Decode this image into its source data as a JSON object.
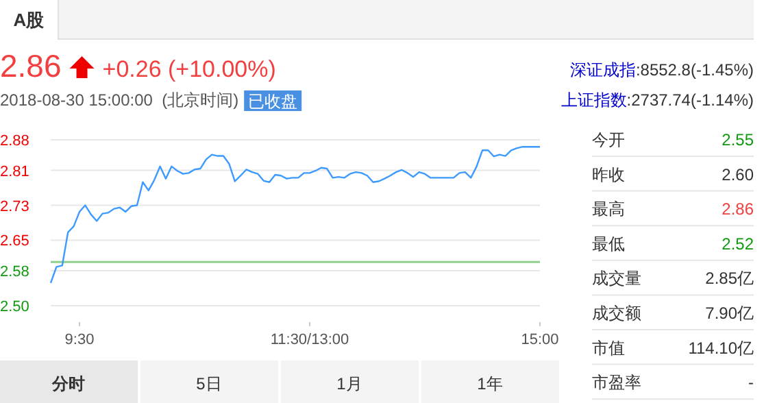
{
  "chart_data": [
    {
      "type": "other",
      "annotations": [
        "A股",
        "2.86",
        "+0.26 (+10.00%)",
        "2018-08-30 15:00:00  (北京时间)",
        "已收盘",
        "深证成指",
        ":8552.8(-1.45%)",
        "上证指数",
        ":2737.74(-1.14%)"
      ]
    },
    {
      "type": "line",
      "categories": [
        null,
        null,
        null,
        null,
        null,
        "9:30",
        null,
        null,
        null,
        null,
        null,
        null,
        null,
        null,
        null,
        null,
        null,
        null,
        null,
        null,
        null,
        null,
        null,
        null,
        null,
        null,
        null,
        null,
        null,
        null,
        null,
        null,
        null,
        null,
        null,
        null,
        null,
        null,
        null,
        null,
        null,
        null,
        null,
        null,
        null,
        "11:30/13:00",
        null,
        null,
        null,
        null,
        null,
        null,
        null,
        null,
        null,
        null,
        null,
        null,
        null,
        null,
        null,
        null,
        null,
        null,
        null,
        null,
        null,
        null,
        null,
        null,
        null,
        null,
        null,
        null,
        null,
        null,
        null,
        null,
        null,
        null,
        null,
        null,
        null,
        null,
        null,
        "15:00"
      ],
      "series": [
        {
          "color": "#3d9bff",
          "values": [
            2.552,
            2.589,
            2.592,
            2.668,
            2.682,
            2.715,
            2.73,
            2.709,
            2.694,
            2.711,
            2.713,
            2.722,
            2.725,
            2.715,
            2.728,
            2.73,
            2.783,
            2.764,
            2.788,
            2.819,
            2.791,
            2.819,
            2.809,
            2.802,
            2.804,
            2.812,
            2.814,
            2.835,
            2.846,
            2.843,
            2.843,
            2.825,
            2.785,
            2.798,
            2.812,
            2.806,
            2.802,
            2.786,
            2.783,
            2.8,
            2.798,
            2.791,
            2.793,
            2.793,
            2.804,
            2.804,
            2.809,
            2.816,
            2.814,
            2.793,
            2.795,
            2.793,
            2.802,
            2.806,
            2.804,
            2.798,
            2.783,
            2.785,
            2.791,
            2.798,
            2.806,
            2.811,
            2.804,
            2.795,
            2.806,
            2.802,
            2.793,
            2.793,
            2.793,
            2.793,
            2.793,
            2.804,
            2.806,
            2.793,
            2.819,
            2.856,
            2.856,
            2.842,
            2.846,
            2.843,
            2.856,
            2.861,
            2.864,
            2.864,
            2.864,
            2.864
          ]
        }
      ],
      "ylim": [
        2.5,
        2.88
      ],
      "yticks": [
        {
          "value": 2.5,
          "label": "2.50"
        },
        {
          "value": 2.58,
          "label": "2.58"
        },
        {
          "value": 2.65,
          "label": "2.65"
        },
        {
          "value": 2.73,
          "label": "2.73"
        },
        {
          "value": 2.81,
          "label": "2.81"
        },
        {
          "value": 2.88,
          "label": "2.88"
        }
      ],
      "grid": "y",
      "ref_lines": [
        {
          "axis": "y",
          "value": 2.6,
          "color": "#8fd08f"
        }
      ]
    },
    {
      "type": "other",
      "categories": [
        "今开",
        "昨收",
        "最高",
        "最低",
        "成交量",
        "成交额",
        "市值",
        "市盈率"
      ],
      "value_labels": [
        "2.55",
        "2.60",
        "2.86",
        "2.52",
        "2.85亿",
        "7.90亿",
        "114.10亿",
        "-"
      ],
      "colors": [
        "#119911",
        "#333333",
        "#f24040",
        "#119911",
        "#333333",
        "#333333",
        "#333333",
        "#333333"
      ]
    },
    {
      "type": "other",
      "annotations": [
        "分时",
        "5日",
        "1月",
        "1年"
      ]
    }
  ]
}
